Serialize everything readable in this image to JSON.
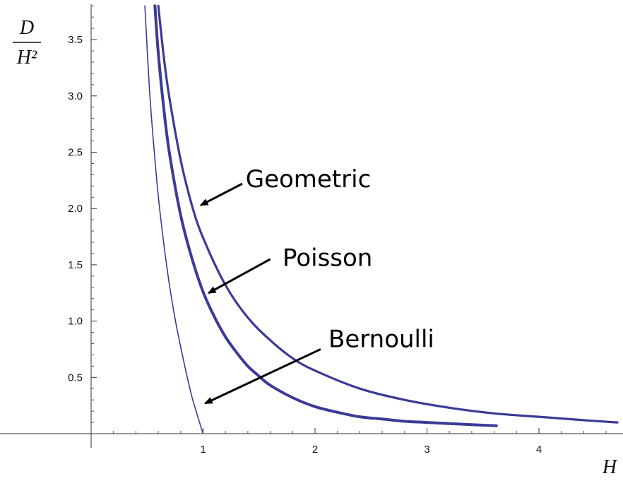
{
  "chart_data": {
    "type": "line",
    "title": "",
    "xlabel": "H",
    "ylabel_numerator": "D",
    "ylabel_denominator": "H²",
    "xlim": [
      -0.05,
      4.7
    ],
    "ylim": [
      -0.05,
      3.8
    ],
    "x_ticks": [
      {
        "value": 1,
        "label": "1"
      },
      {
        "value": 2,
        "label": "2"
      },
      {
        "value": 3,
        "label": "3"
      },
      {
        "value": 4,
        "label": "4"
      }
    ],
    "y_ticks": [
      {
        "value": 0.5,
        "label": "0.5"
      },
      {
        "value": 1.0,
        "label": "1.0"
      },
      {
        "value": 1.5,
        "label": "1.5"
      },
      {
        "value": 2.0,
        "label": "2.0"
      },
      {
        "value": 2.5,
        "label": "2.5"
      },
      {
        "value": 3.0,
        "label": "3.0"
      },
      {
        "value": 3.5,
        "label": "3.5"
      }
    ],
    "grid": false,
    "line_color": "#3b3b95",
    "series": [
      {
        "name": "Geometric",
        "stroke_width": 3.2,
        "x": [
          0.6,
          0.65,
          0.7,
          0.8,
          0.9,
          1.0,
          1.2,
          1.4,
          1.6,
          1.8,
          2.0,
          2.4,
          2.8,
          3.2,
          3.6,
          4.0,
          4.4,
          4.7
        ],
        "y": [
          3.8,
          3.34,
          2.98,
          2.43,
          2.03,
          1.74,
          1.32,
          1.03,
          0.83,
          0.67,
          0.56,
          0.4,
          0.3,
          0.23,
          0.18,
          0.15,
          0.12,
          0.1
        ]
      },
      {
        "name": "Poisson",
        "stroke_width": 4,
        "x": [
          0.57,
          0.6,
          0.65,
          0.7,
          0.8,
          0.9,
          1.0,
          1.1,
          1.2,
          1.3,
          1.4,
          1.5,
          1.6,
          1.8,
          2.0,
          2.2,
          2.4,
          2.6,
          2.8,
          3.0,
          3.2,
          3.4,
          3.62
        ],
        "y": [
          3.8,
          3.38,
          2.88,
          2.49,
          1.94,
          1.56,
          1.26,
          1.04,
          0.86,
          0.72,
          0.6,
          0.51,
          0.43,
          0.32,
          0.24,
          0.19,
          0.15,
          0.13,
          0.11,
          0.1,
          0.09,
          0.08,
          0.07
        ]
      },
      {
        "name": "Bernoulli",
        "stroke_width": 1.6,
        "x": [
          0.48,
          0.52,
          0.56,
          0.6,
          0.65,
          0.7,
          0.75,
          0.8,
          0.85,
          0.9,
          0.95,
          1.0
        ],
        "y": [
          3.8,
          3.08,
          2.55,
          2.11,
          1.68,
          1.32,
          1.02,
          0.77,
          0.54,
          0.33,
          0.16,
          0.0
        ]
      }
    ],
    "annotations": [
      {
        "text": "Geometric",
        "label_x": 1.38,
        "label_y": 2.19,
        "arrow_from": [
          1.35,
          2.22
        ],
        "arrow_to": [
          0.98,
          2.03
        ]
      },
      {
        "text": "Poisson",
        "label_x": 1.71,
        "label_y": 1.49,
        "arrow_from": [
          1.6,
          1.55
        ],
        "arrow_to": [
          1.05,
          1.25
        ]
      },
      {
        "text": "Bernoulli",
        "label_x": 2.12,
        "label_y": 0.77,
        "arrow_from": [
          2.05,
          0.75
        ],
        "arrow_to": [
          1.02,
          0.27
        ]
      }
    ]
  }
}
